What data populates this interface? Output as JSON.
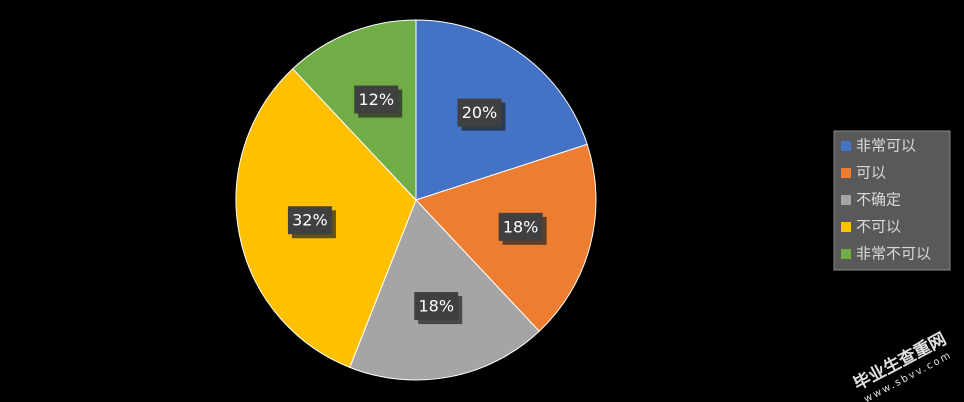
{
  "chart_data": {
    "type": "pie",
    "categories": [
      "非常可以",
      "可以",
      "不确定",
      "不可以",
      "非常不可以"
    ],
    "values": [
      20,
      18,
      18,
      32,
      12
    ],
    "value_labels": [
      "20%",
      "18%",
      "18%",
      "32%",
      "12%"
    ],
    "colors": [
      "#4472c4",
      "#ed7d31",
      "#a5a5a5",
      "#ffc000",
      "#70ad47"
    ],
    "legend": "right"
  },
  "watermark": {
    "title": "毕业生查重网",
    "url": "www.sbvv.com"
  }
}
